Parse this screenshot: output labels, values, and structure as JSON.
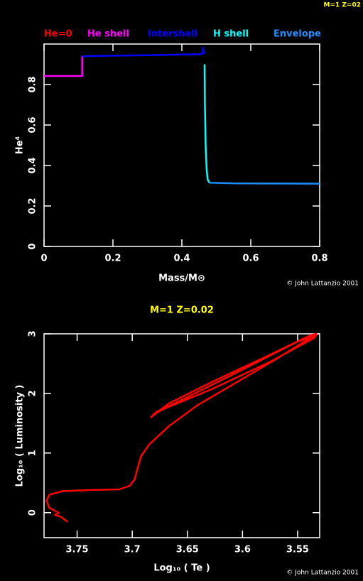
{
  "chart_data": [
    {
      "type": "line",
      "corner_label": "M=1 Z=02",
      "credit": "© John Lattanzio 2001",
      "xlabel": "Mass/M⊙",
      "ylabel": "He⁴",
      "xlim": [
        0,
        0.8
      ],
      "ylim": [
        0,
        1.0
      ],
      "xticks": [
        0,
        0.2,
        0.4,
        0.6,
        0.8
      ],
      "yticks": [
        0,
        0.2,
        0.4,
        0.6,
        0.8
      ],
      "series": [
        {
          "name": "He=0",
          "color": "#ff0000",
          "x": [],
          "values": []
        },
        {
          "name": "He shell",
          "color": "#ff00ff",
          "x": [
            0,
            0.111,
            0.111
          ],
          "values": [
            0.842,
            0.842,
            0.94
          ]
        },
        {
          "name": "Intershell",
          "color": "#0000ff",
          "x": [
            0.111,
            0.3,
            0.458,
            0.46,
            0.462,
            0.464,
            0.466
          ],
          "values": [
            0.94,
            0.945,
            0.95,
            0.96,
            0.982,
            0.96,
            0.95
          ]
        },
        {
          "name": "H shell",
          "color": "#00ffff",
          "x": [
            0.466,
            0.467,
            0.469,
            0.472,
            0.475,
            0.48
          ],
          "values": [
            0.9,
            0.7,
            0.5,
            0.38,
            0.33,
            0.315
          ]
        },
        {
          "name": "Envelope",
          "color": "#1e8fff",
          "x": [
            0.48,
            0.55,
            0.7,
            0.8
          ],
          "values": [
            0.315,
            0.312,
            0.311,
            0.31
          ]
        }
      ]
    },
    {
      "type": "line",
      "title": "M=1 Z=0.02",
      "credit": "© John Lattanzio 2001",
      "xlabel": "Log₁₀ ( Te )",
      "ylabel": "Log₁₀ ( Luminosity )",
      "xlim": [
        3.78,
        3.53
      ],
      "ylim": [
        -0.42,
        3.0
      ],
      "xticks": [
        3.75,
        3.7,
        3.65,
        3.6,
        3.55
      ],
      "yticks": [
        0,
        1,
        2,
        3
      ],
      "series": [
        {
          "color": "#ff0000",
          "x": [
            3.7584,
            3.7648,
            3.77,
            3.7668,
            3.7752,
            3.7777,
            3.7752,
            3.7635,
            3.7377,
            3.7119,
            3.7023,
            3.6977,
            3.6952,
            3.6919,
            3.6848,
            3.6668,
            3.641,
            3.6087,
            3.57,
            3.535,
            3.533,
            3.538,
            3.576,
            3.628,
            3.667,
            3.683,
            3.678,
            3.654,
            3.602,
            3.551,
            3.533,
            3.535,
            3.576,
            3.628,
            3.67,
            3.681
          ],
          "values": [
            -0.155,
            -0.07,
            -0.04,
            0.0,
            0.08,
            0.2,
            0.3,
            0.36,
            0.38,
            0.39,
            0.45,
            0.56,
            0.74,
            0.95,
            1.14,
            1.45,
            1.8,
            2.15,
            2.57,
            2.97,
            3.0,
            2.98,
            2.64,
            2.19,
            1.83,
            1.6,
            1.69,
            1.9,
            2.38,
            2.86,
            2.98,
            2.93,
            2.52,
            2.07,
            1.75,
            1.65
          ]
        }
      ]
    }
  ]
}
